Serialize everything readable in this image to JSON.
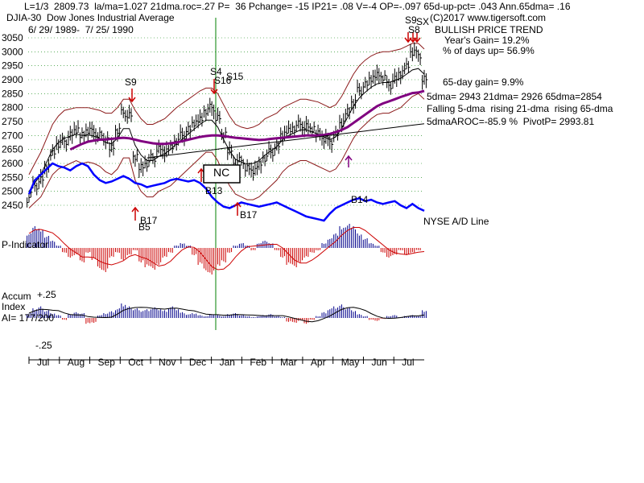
{
  "header": {
    "line1": "L=1/3  2809.73  la/ma=1.027 21dma.roc=.27 P=  36 Pchange= -15 IP21= .08 V=-4 OP=-.097 65d-up-pct= .043 Ann.65dma= .16",
    "index_name": "DJIA-30  Dow Jones Industrial Average",
    "copyright": "(C)2017 www.tigersoft.com",
    "date_range": "6/ 29/ 1989-  7/ 25/ 1990",
    "trend": "BULLISH PRICE TREND"
  },
  "stats": {
    "years_gain": "Year's Gain= 19.2%",
    "days_up": "% of days up= 56.9%",
    "gain65": "65-day gain= 9.9%",
    "dmas": "5dma= 2943 21dma= 2926 65dma=2854",
    "trend_note": "Falling 5-dma  rising 21-dma  rising 65-dma",
    "aroc": "5dmaAROC=-85.9 %  PivotP= 2993.81"
  },
  "labels": {
    "ad_line": "NYSE A/D Line",
    "p_indicator": "P-Indicator",
    "accum1": "Accum",
    "accum2": "Index",
    "ai": "AI= 177/200",
    "nc": "NC",
    "accum_top": "+.25",
    "accum_bottom": "-.25"
  },
  "signals": {
    "s9_oct": "S9",
    "s4": "S4",
    "s16": "S16",
    "s15": "S15",
    "b17_oct": "B17",
    "b5": "B5",
    "b13": "B13",
    "b17_jan": "B17",
    "b14": "B14",
    "s9_jul": "S9",
    "sx": "SX",
    "s8": "S8"
  },
  "colors": {
    "price": "#000000",
    "band": "#8b1a1a",
    "ma65": "#800080",
    "ad_line": "#0000ff",
    "pind_pos": "#00008b",
    "pind_neg": "#cc0000",
    "signal": "#cc0000",
    "buy_arrow_blue": "#800080",
    "vline": "#008000",
    "grid": "#008000"
  },
  "chart_data": {
    "type": "line",
    "title": "DJIA-30 Dow Jones Industrial Average",
    "price_axis": {
      "ticks": [
        3050,
        3000,
        2950,
        2900,
        2850,
        2800,
        2750,
        2700,
        2650,
        2600,
        2550,
        2500,
        2450
      ],
      "ylim": [
        2440,
        3060
      ]
    },
    "months": [
      "Jul",
      "Aug",
      "Sep",
      "Oct",
      "Nov",
      "Dec",
      "Jan",
      "Feb",
      "Mar",
      "Apr",
      "May",
      "Jun",
      "Jul"
    ],
    "price_series": [
      2490,
      2520,
      2540,
      2585,
      2640,
      2670,
      2680,
      2700,
      2715,
      2705,
      2720,
      2710,
      2700,
      2680,
      2660,
      2720,
      2780,
      2770,
      2620,
      2590,
      2600,
      2620,
      2650,
      2640,
      2660,
      2680,
      2700,
      2720,
      2740,
      2760,
      2790,
      2800,
      2760,
      2700,
      2650,
      2600,
      2610,
      2580,
      2570,
      2600,
      2620,
      2640,
      2660,
      2700,
      2720,
      2730,
      2740,
      2730,
      2720,
      2710,
      2690,
      2680,
      2700,
      2740,
      2790,
      2820,
      2860,
      2880,
      2900,
      2920,
      2910,
      2880,
      2900,
      2920,
      2950,
      3000,
      2990,
      2900
    ],
    "ma65_series": [
      null,
      null,
      null,
      null,
      null,
      null,
      null,
      2650,
      2660,
      2670,
      2678,
      2682,
      2685,
      2686,
      2688,
      2690,
      2692,
      2690,
      2685,
      2680,
      2676,
      2672,
      2670,
      2670,
      2672,
      2675,
      2680,
      2685,
      2690,
      2695,
      2698,
      2700,
      2700,
      2698,
      2695,
      2692,
      2690,
      2688,
      2686,
      2684,
      2685,
      2688,
      2690,
      2692,
      2694,
      2696,
      2698,
      2700,
      2700,
      2700,
      2702,
      2706,
      2712,
      2720,
      2730,
      2745,
      2760,
      2775,
      2790,
      2805,
      2815,
      2822,
      2830,
      2838,
      2845,
      2852,
      2854,
      2860
    ],
    "upper_band": [
      2560,
      2600,
      2640,
      2690,
      2740,
      2770,
      2790,
      2795,
      2800,
      2800,
      2800,
      2795,
      2790,
      2780,
      2780,
      2800,
      2830,
      2830,
      2790,
      2760,
      2740,
      2740,
      2750,
      2760,
      2780,
      2800,
      2815,
      2830,
      2845,
      2860,
      2870,
      2870,
      2850,
      2810,
      2770,
      2740,
      2730,
      2725,
      2730,
      2740,
      2760,
      2770,
      2780,
      2800,
      2810,
      2820,
      2830,
      2830,
      2825,
      2820,
      2810,
      2800,
      2810,
      2840,
      2880,
      2920,
      2950,
      2970,
      2985,
      2995,
      3000,
      3000,
      3005,
      3010,
      3020,
      3030,
      3030,
      3010
    ],
    "lower_band": [
      2440,
      2460,
      2480,
      2520,
      2560,
      2580,
      2590,
      2600,
      2610,
      2600,
      2605,
      2600,
      2590,
      2570,
      2560,
      2580,
      2620,
      2620,
      2540,
      2500,
      2480,
      2480,
      2500,
      2510,
      2520,
      2540,
      2560,
      2580,
      2600,
      2620,
      2640,
      2640,
      2610,
      2560,
      2520,
      2490,
      2480,
      2470,
      2470,
      2480,
      2500,
      2520,
      2540,
      2570,
      2590,
      2600,
      2610,
      2610,
      2600,
      2590,
      2580,
      2570,
      2580,
      2610,
      2650,
      2690,
      2720,
      2740,
      2760,
      2775,
      2780,
      2780,
      2790,
      2800,
      2820,
      2840,
      2850,
      2830
    ],
    "ad_line_series": [
      2490,
      2540,
      2560,
      2580,
      2600,
      2590,
      2585,
      2575,
      2590,
      2600,
      2590,
      2560,
      2540,
      2530,
      2535,
      2545,
      2555,
      2545,
      2530,
      2525,
      2515,
      2520,
      2525,
      2530,
      2540,
      2545,
      2540,
      2535,
      2540,
      2530,
      2510,
      2480,
      2460,
      2445,
      2440,
      2450,
      2460,
      2455,
      2450,
      2445,
      2450,
      2455,
      2460,
      2450,
      2440,
      2430,
      2420,
      2410,
      2405,
      2400,
      2395,
      2420,
      2440,
      2450,
      2460,
      2470,
      2475,
      2465,
      2470,
      2460,
      2455,
      2460,
      2465,
      2450,
      2440,
      2455,
      2440,
      2430
    ],
    "p_indicator": [
      0.6,
      0.9,
      0.8,
      0.5,
      0.3,
      0.1,
      -0.2,
      -0.4,
      -0.3,
      -0.6,
      -0.2,
      -0.5,
      -0.9,
      -1.0,
      -0.4,
      -0.2,
      -0.5,
      -0.3,
      -0.1,
      -0.6,
      -0.8,
      -0.9,
      -0.7,
      -0.4,
      -0.2,
      0.1,
      0.2,
      0.1,
      -0.3,
      -0.7,
      -1.0,
      -1.1,
      -0.8,
      -0.6,
      -0.2,
      0.1,
      0.2,
      0.1,
      -0.1,
      0.2,
      0.3,
      0.2,
      -0.1,
      -0.4,
      -0.7,
      -0.8,
      -0.6,
      -0.4,
      -0.2,
      -0.1,
      0.2,
      0.4,
      0.6,
      0.9,
      1.0,
      0.9,
      0.6,
      0.4,
      0.2,
      0.1,
      -0.2,
      -0.4,
      -0.3,
      -0.1,
      -0.3,
      -0.2,
      -0.1,
      0.0
    ],
    "accum_index": [
      0.05,
      0.1,
      0.12,
      0.08,
      0.05,
      0.03,
      -0.02,
      0.04,
      0.06,
      0.05,
      -0.06,
      -0.05,
      0.03,
      0.05,
      0.07,
      0.1,
      0.15,
      0.12,
      0.1,
      0.08,
      0.09,
      0.11,
      0.1,
      0.08,
      0.12,
      0.1,
      0.06,
      0.04,
      0.05,
      0.03,
      0.02,
      0.04,
      0.03,
      0.02,
      0.04,
      0.05,
      0.03,
      0.02,
      0.01,
      0.02,
      0.03,
      0.04,
      0.02,
      0.01,
      -0.04,
      -0.05,
      -0.03,
      -0.06,
      -0.02,
      0.02,
      0.06,
      0.1,
      0.12,
      0.14,
      0.11,
      0.08,
      0.04,
      0.02,
      -0.02,
      -0.03,
      -0.01,
      0.02,
      0.03,
      0.01,
      0.02,
      0.03,
      0.02,
      0.08
    ],
    "accum_axis": {
      "ylim": [
        -0.25,
        0.25
      ],
      "ticks": [
        "+.25",
        "-.25"
      ]
    }
  }
}
